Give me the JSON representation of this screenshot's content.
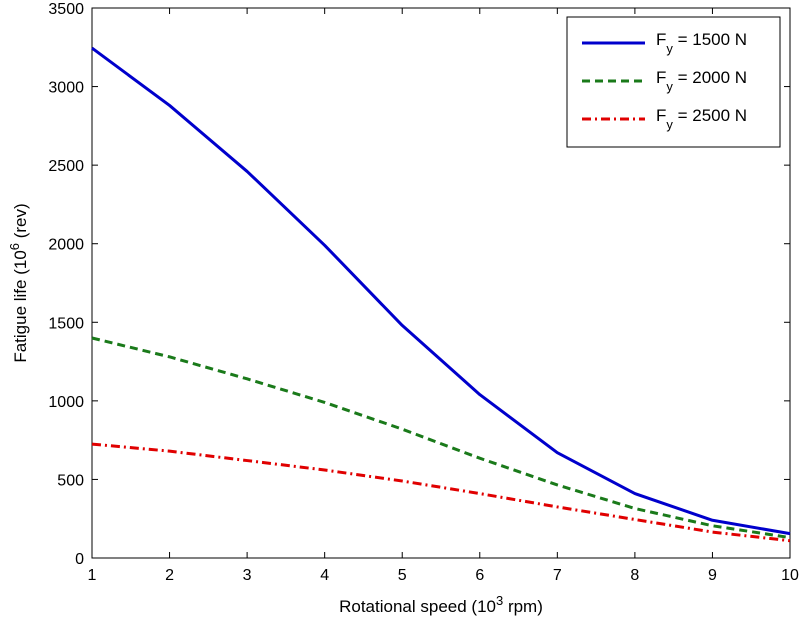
{
  "chart_data": {
    "type": "line",
    "title": "",
    "xlabel": {
      "prefix": "Rotational speed (10",
      "sup": "3",
      "suffix": " rpm)"
    },
    "ylabel": {
      "prefix": "Fatigue life (10",
      "sup": "6",
      "suffix": " (rev)"
    },
    "xlim": [
      1,
      10
    ],
    "ylim": [
      0,
      3500
    ],
    "xticks": [
      1,
      2,
      3,
      4,
      5,
      6,
      7,
      8,
      9,
      10
    ],
    "yticks": [
      0,
      500,
      1000,
      1500,
      2000,
      2500,
      3000,
      3500
    ],
    "grid": false,
    "legend_position": "top-right",
    "x": [
      1,
      2,
      3,
      4,
      5,
      6,
      7,
      8,
      9,
      10
    ],
    "series": [
      {
        "name": {
          "base": "F",
          "sub": "y",
          "rest": " = 1500 N"
        },
        "values": [
          3245,
          2880,
          2460,
          1990,
          1480,
          1040,
          670,
          410,
          240,
          155
        ],
        "color": "#0000cc",
        "dash": "solid"
      },
      {
        "name": {
          "base": "F",
          "sub": "y",
          "rest": " = 2000 N"
        },
        "values": [
          1400,
          1280,
          1140,
          990,
          820,
          635,
          465,
          315,
          205,
          130
        ],
        "color": "#1a7a1a",
        "dash": "dashed"
      },
      {
        "name": {
          "base": "F",
          "sub": "y",
          "rest": " = 2500 N"
        },
        "values": [
          725,
          680,
          620,
          560,
          490,
          410,
          325,
          245,
          165,
          110
        ],
        "color": "#e00000",
        "dash": "dashdot"
      }
    ]
  }
}
